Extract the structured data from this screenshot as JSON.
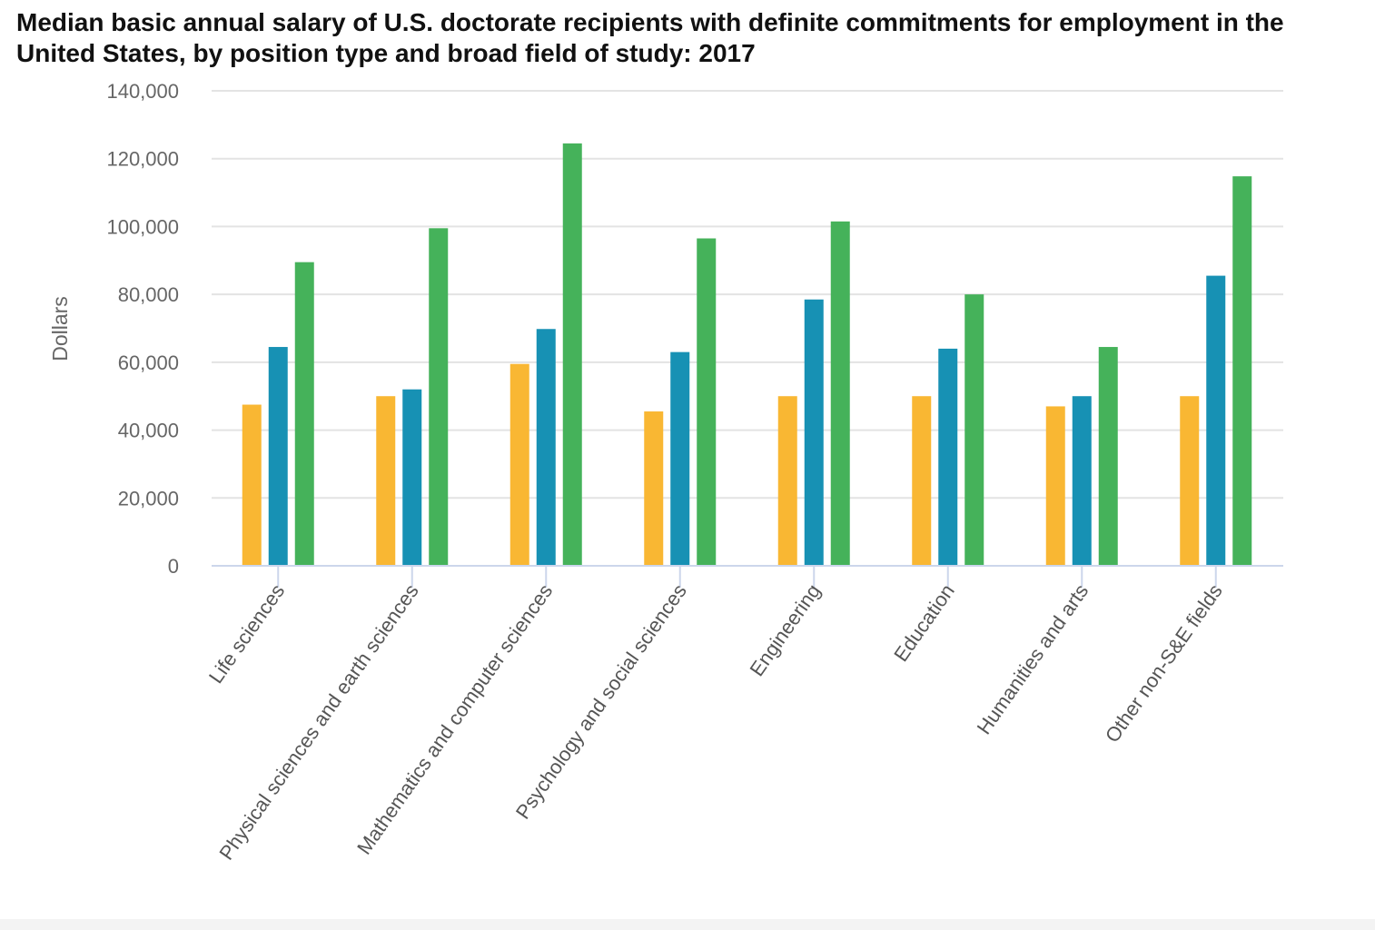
{
  "chart_data": {
    "type": "bar",
    "title": "Median basic annual salary of U.S. doctorate recipients with definite commitments for employment in the United States, by position type and broad field of study: 2017",
    "ylabel": "Dollars",
    "xlabel": "",
    "ylim": [
      0,
      140000
    ],
    "yticks": [
      0,
      20000,
      40000,
      60000,
      80000,
      100000,
      120000,
      140000
    ],
    "ytick_labels": [
      "0",
      "20,000",
      "40,000",
      "60,000",
      "80,000",
      "100,000",
      "120,000",
      "140,000"
    ],
    "grid": true,
    "categories": [
      "Life sciences",
      "Physical sciences and earth sciences",
      "Mathematics and computer sciences",
      "Psychology and social sciences",
      "Engineering",
      "Education",
      "Humanities and arts",
      "Other non-S&E fields"
    ],
    "series": [
      {
        "color": "#F9B733",
        "values": [
          47500,
          50000,
          59500,
          45500,
          50000,
          50000,
          47000,
          50000
        ]
      },
      {
        "color": "#1791B4",
        "values": [
          64500,
          52000,
          69800,
          63000,
          78500,
          64000,
          50000,
          85500
        ]
      },
      {
        "color": "#45B25A",
        "values": [
          89500,
          99500,
          124500,
          96500,
          101500,
          80000,
          64500,
          114800
        ]
      }
    ]
  }
}
